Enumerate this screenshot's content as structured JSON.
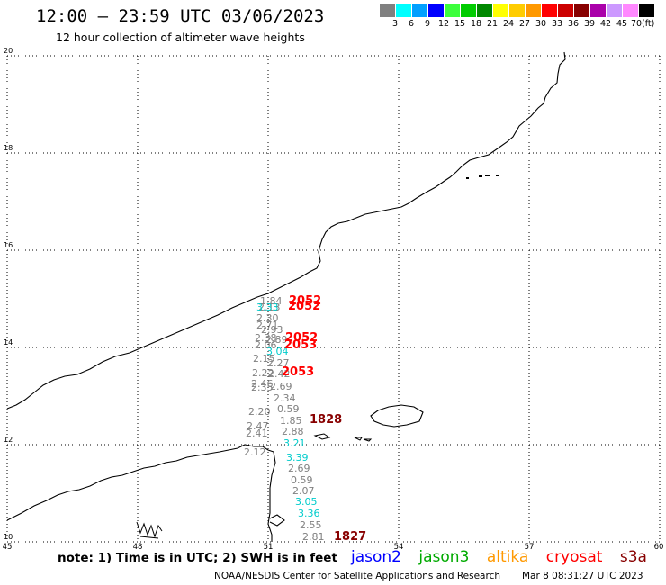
{
  "title": "12:00 – 23:59 UTC 03/06/2023",
  "subtitle": "12 hour collection of altimeter wave heights",
  "colorbar": {
    "colors": [
      "#808080",
      "#00ffff",
      "#00a0ff",
      "#0000ff",
      "#3cff3c",
      "#00cc00",
      "#008800",
      "#ffff00",
      "#ffcc00",
      "#ff9900",
      "#ff0000",
      "#cc0000",
      "#880000",
      "#aa00aa",
      "#cc99ff",
      "#ff88ff",
      "#000000"
    ],
    "labels": [
      "3",
      "6",
      "9",
      "12",
      "15",
      "18",
      "21",
      "24",
      "27",
      "30",
      "33",
      "36",
      "39",
      "42",
      "45",
      "70"
    ],
    "unit": "(ft)"
  },
  "axes": {
    "lat_labels": [
      "20",
      "18",
      "16",
      "14",
      "12",
      "10"
    ],
    "lon_labels": [
      "45",
      "48",
      "51",
      "54",
      "57",
      "60"
    ]
  },
  "tracks": [
    {
      "text": "1.84",
      "color": "#808080"
    },
    {
      "text": "2.13",
      "color": "#808080"
    },
    {
      "text": "3.33",
      "color": "#00cccc"
    },
    {
      "text": "2.30",
      "color": "#808080"
    },
    {
      "text": "2.71",
      "color": "#808080"
    },
    {
      "text": "2.93",
      "color": "#808080"
    },
    {
      "text": "2.38",
      "color": "#808080"
    },
    {
      "text": "2.89",
      "color": "#808080"
    },
    {
      "text": "2.06",
      "color": "#808080"
    },
    {
      "text": "3.04",
      "color": "#00cccc"
    },
    {
      "text": "2.15",
      "color": "#808080"
    },
    {
      "text": "2.27",
      "color": "#808080"
    },
    {
      "text": "2.22",
      "color": "#808080"
    },
    {
      "text": "2.42",
      "color": "#808080"
    },
    {
      "text": "2.46",
      "color": "#808080"
    },
    {
      "text": "2.35",
      "color": "#808080"
    },
    {
      "text": "2.69",
      "color": "#808080"
    },
    {
      "text": "2.34",
      "color": "#808080"
    },
    {
      "text": "2.20",
      "color": "#808080"
    },
    {
      "text": "0.59",
      "color": "#808080"
    },
    {
      "text": "1.85",
      "color": "#808080"
    },
    {
      "text": "2.47",
      "color": "#808080"
    },
    {
      "text": "2.41",
      "color": "#808080"
    },
    {
      "text": "2.88",
      "color": "#808080"
    },
    {
      "text": "3.21",
      "color": "#00cccc"
    },
    {
      "text": "2.12",
      "color": "#808080"
    },
    {
      "text": "3.39",
      "color": "#00cccc"
    },
    {
      "text": "2.69",
      "color": "#808080"
    },
    {
      "text": "0.59",
      "color": "#808080"
    },
    {
      "text": "2.07",
      "color": "#808080"
    },
    {
      "text": "3.05",
      "color": "#00cccc"
    },
    {
      "text": "3.36",
      "color": "#00cccc"
    },
    {
      "text": "2.55",
      "color": "#808080"
    },
    {
      "text": "2.81",
      "color": "#808080"
    }
  ],
  "times": [
    {
      "text": "2052",
      "color": "#ff0000"
    },
    {
      "text": "2052",
      "color": "#ff0000"
    },
    {
      "text": "2052",
      "color": "#ff0000"
    },
    {
      "text": "2053",
      "color": "#ff0000"
    },
    {
      "text": "2053",
      "color": "#ff0000"
    },
    {
      "text": "1828",
      "color": "#880000"
    },
    {
      "text": "1827",
      "color": "#880000"
    }
  ],
  "note": "note: 1) Time is in UTC; 2) SWH is in feet",
  "legend": [
    {
      "label": "jason2",
      "color": "#0000ff"
    },
    {
      "label": "jason3",
      "color": "#00aa00"
    },
    {
      "label": "altika",
      "color": "#ff9900"
    },
    {
      "label": "cryosat",
      "color": "#ff0000"
    },
    {
      "label": "s3a",
      "color": "#880000"
    }
  ],
  "credit": "NOAA/NESDIS Center for Satellite Applications and Research",
  "timestamp": "Mar  8 08:31:27 UTC 2023"
}
